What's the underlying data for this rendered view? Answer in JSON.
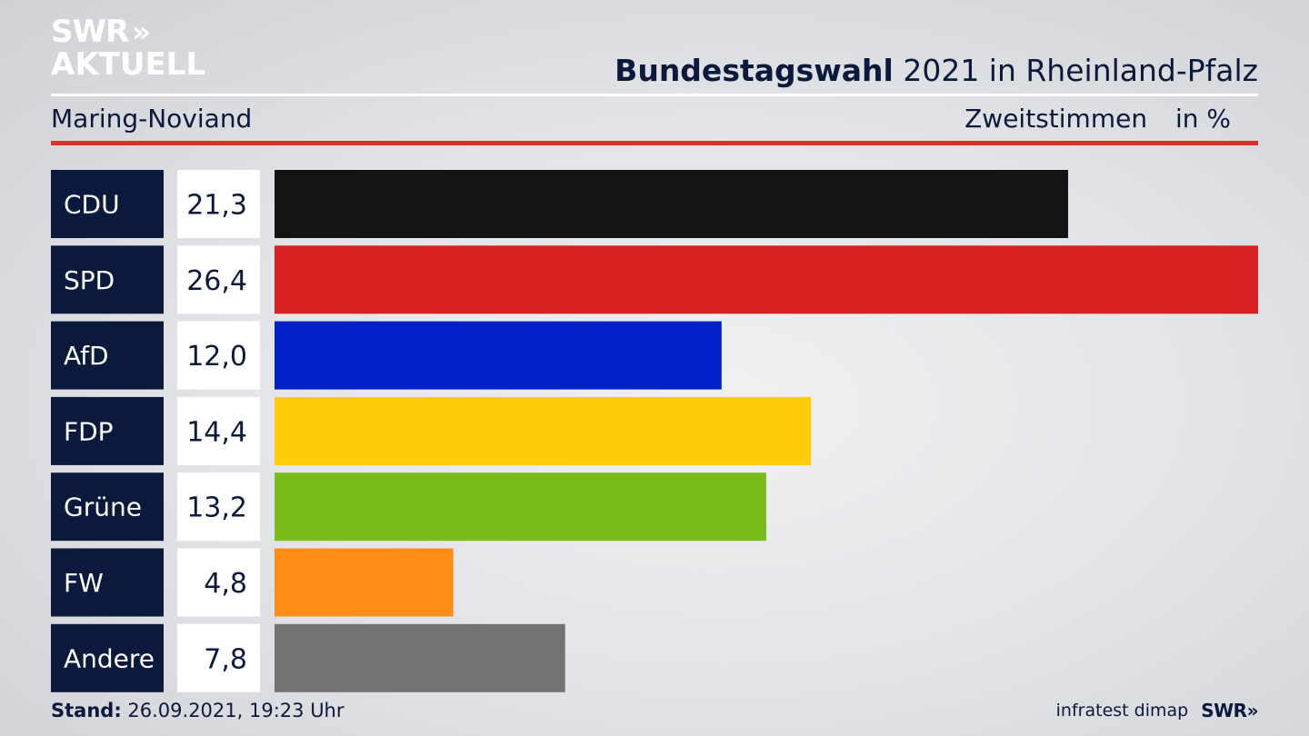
{
  "brand": {
    "line1": "SWR",
    "arrows": "»",
    "line2": "AKTUELL"
  },
  "header": {
    "title_bold": "Bundestagswahl",
    "title_rest": "2021 in Rheinland-Pfalz",
    "place": "Maring-Noviand",
    "vote_type": "Zweitstimmen",
    "unit": "in %"
  },
  "footer": {
    "stand_label": "Stand:",
    "stand_value": "26.09.2021, 19:23 Uhr",
    "source": "infratest dimap",
    "source_logo": "SWR»"
  },
  "colors": {
    "label_bg": "#0b1a3c",
    "value_bg": "#ffffff",
    "accent_rule": "#d9302a"
  },
  "chart_data": {
    "type": "bar",
    "orientation": "horizontal",
    "categories": [
      "CDU",
      "SPD",
      "AfD",
      "FDP",
      "Grüne",
      "FW",
      "Andere"
    ],
    "values": [
      21.3,
      26.4,
      12.0,
      14.4,
      13.2,
      4.8,
      7.8
    ],
    "value_labels": [
      "21,3",
      "26,4",
      "12,0",
      "14,4",
      "13,2",
      "4,8",
      "7,8"
    ],
    "colors": [
      "#141414",
      "#d82020",
      "#0021c8",
      "#ffcc0a",
      "#78bd1c",
      "#ff8d18",
      "#737373"
    ],
    "xlim": [
      0,
      26.4
    ],
    "grid": false,
    "legend": "none"
  }
}
